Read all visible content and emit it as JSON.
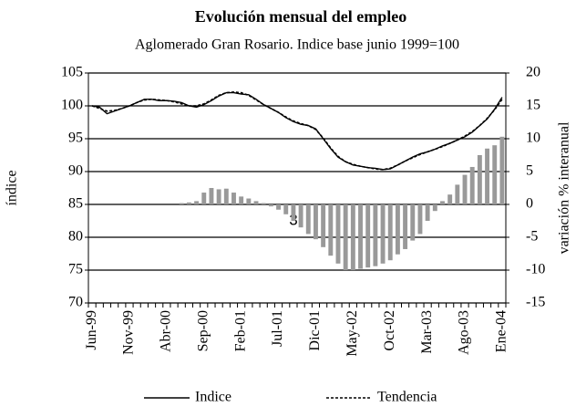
{
  "chart_data": {
    "type": "bar",
    "title": "Evolución mensual del empleo",
    "subtitle": "Aglomerado Gran Rosario. Indice base junio 1999=100",
    "y_label": "índice",
    "y2_label": "variación % interanual",
    "annotation": "3",
    "categories": [
      "Jun-99",
      null,
      null,
      null,
      null,
      "Nov-99",
      null,
      null,
      null,
      null,
      "Abr-00",
      null,
      null,
      null,
      null,
      "Sep-00",
      null,
      null,
      null,
      null,
      "Feb-01",
      null,
      null,
      null,
      null,
      "Jul-01",
      null,
      null,
      null,
      null,
      "Dic-01",
      null,
      null,
      null,
      null,
      "May-02",
      null,
      null,
      null,
      null,
      "Oct-02",
      null,
      null,
      null,
      null,
      "Mar-03",
      null,
      null,
      null,
      null,
      "Ago-03",
      null,
      null,
      null,
      null,
      "Ene-04"
    ],
    "series": [
      {
        "name": "Indice",
        "type": "line",
        "color": "#000000",
        "dash": false,
        "values": [
          100,
          99.8,
          98.8,
          99.2,
          99.6,
          100,
          100.5,
          101,
          101,
          100.8,
          100.8,
          100.7,
          100.5,
          100,
          99.8,
          100.2,
          100.8,
          101.5,
          102,
          102,
          101.8,
          101.7,
          101,
          100.2,
          99.6,
          99,
          98.2,
          97.6,
          97.2,
          97,
          96.5,
          95,
          93.5,
          92.2,
          91.5,
          91,
          90.8,
          90.6,
          90.5,
          90.3,
          90.4,
          91,
          91.6,
          92.2,
          92.7,
          93,
          93.4,
          93.9,
          94.3,
          94.8,
          95.3,
          96,
          97,
          98,
          99.5,
          101.3
        ]
      },
      {
        "name": "Tendencia",
        "type": "line",
        "color": "#000000",
        "dash": true,
        "values": [
          100,
          99.6,
          99.2,
          99.3,
          99.6,
          100,
          100.5,
          100.9,
          101,
          100.9,
          100.8,
          100.6,
          100.3,
          100,
          100,
          100.3,
          100.9,
          101.6,
          102,
          102.1,
          102,
          101.6,
          100.9,
          100.2,
          99.6,
          99,
          98.3,
          97.7,
          97.3,
          97,
          96.4,
          95.1,
          93.6,
          92.3,
          91.5,
          91.1,
          90.8,
          90.6,
          90.4,
          90.3,
          90.5,
          91,
          91.6,
          92.1,
          92.6,
          93,
          93.4,
          93.8,
          94.3,
          94.8,
          95.4,
          96.1,
          97,
          98.1,
          99.4,
          101
        ]
      },
      {
        "type": "bar",
        "axis": "y2",
        "color": "#999999",
        "values": [
          null,
          null,
          null,
          null,
          null,
          null,
          null,
          null,
          null,
          null,
          null,
          null,
          0.2,
          0.3,
          0.5,
          1.8,
          2.5,
          2.3,
          2.4,
          1.8,
          1.2,
          0.9,
          0.5,
          0.2,
          -0.3,
          -0.8,
          -1.5,
          -2.5,
          -3.5,
          -4.5,
          -5.3,
          -6.5,
          -7.8,
          -9,
          -10,
          -10,
          -9.8,
          -9.6,
          -9.4,
          -9,
          -8.5,
          -7.6,
          -6.8,
          -5.5,
          -4.5,
          -2.5,
          -1,
          0.5,
          1.5,
          3,
          4.5,
          5.7,
          7.5,
          8.5,
          9,
          10.3
        ]
      }
    ],
    "ylim": [
      70,
      105
    ],
    "yticks": [
      70,
      75,
      80,
      85,
      90,
      95,
      100,
      105
    ],
    "y2lim": [
      -15,
      20
    ],
    "y2ticks": [
      -15,
      -10,
      -5,
      0,
      5,
      10,
      15,
      20
    ],
    "grid": true,
    "legend": "bottom"
  }
}
